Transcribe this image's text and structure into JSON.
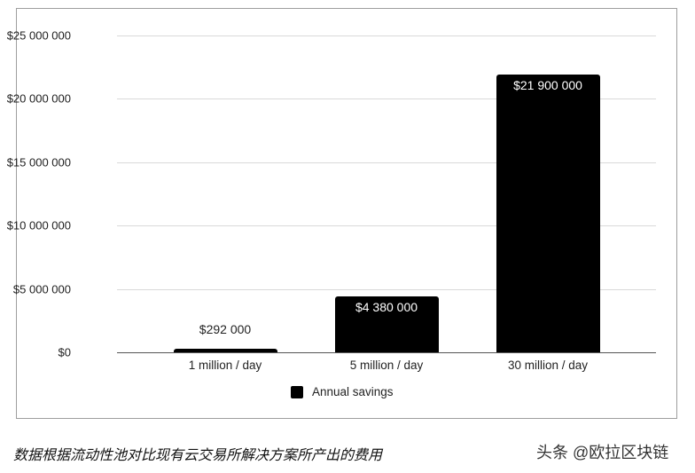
{
  "chart_data": {
    "type": "bar",
    "title": "",
    "xlabel": "",
    "ylabel": "",
    "categories": [
      "1 million / day",
      "5 million / day",
      "30 million / day"
    ],
    "series": [
      {
        "name": "Annual savings",
        "values": [
          292000,
          4380000,
          21900000
        ],
        "color": "#000000"
      }
    ],
    "data_labels": [
      "$292 000",
      "$4 380 000",
      "$21 900 000"
    ],
    "yticks": [
      "$0",
      "$5 000 000",
      "$10 000 000",
      "$15 000 000",
      "$20 000 000",
      "$25 000 000"
    ],
    "ylim": [
      0,
      25000000
    ],
    "grid": true,
    "legend_position": "bottom"
  },
  "legend": {
    "label": "Annual savings"
  },
  "caption": "数据根据流动性池对比现有云交易所解决方案所产出的费用",
  "watermark": "头条 @欧拉区块链"
}
